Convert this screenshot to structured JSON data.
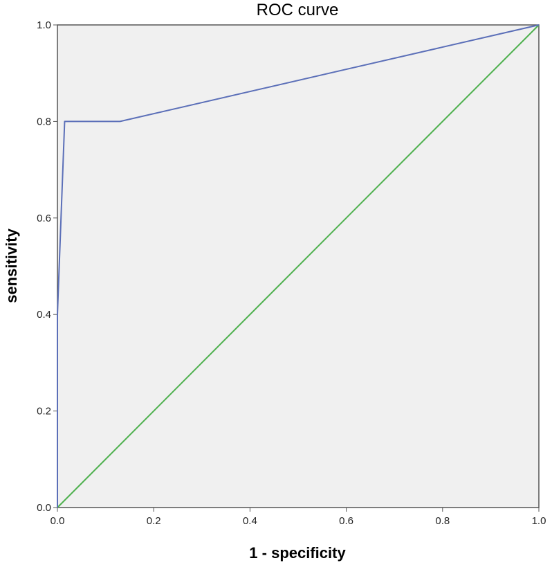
{
  "chart_data": {
    "type": "line",
    "title": "ROC  curve",
    "xlabel": "1 - specificity",
    "ylabel": "sensitivity",
    "xlim": [
      0,
      1
    ],
    "ylim": [
      0,
      1
    ],
    "x_ticks": [
      "0.0",
      "0.2",
      "0.4",
      "0.6",
      "0.8",
      "1.0"
    ],
    "y_ticks": [
      "0.0",
      "0.2",
      "0.4",
      "0.6",
      "0.8",
      "1.0"
    ],
    "grid": false,
    "legend": "none",
    "plot_background": "#f0f0f0",
    "series": [
      {
        "role": "roc",
        "color": "#5b6fb8",
        "points": [
          {
            "x": 0.0,
            "y": 0.0
          },
          {
            "x": 0.0,
            "y": 0.4
          },
          {
            "x": 0.015,
            "y": 0.8
          },
          {
            "x": 0.13,
            "y": 0.8
          },
          {
            "x": 1.0,
            "y": 1.0
          }
        ]
      },
      {
        "role": "reference",
        "color": "#4db04d",
        "points": [
          {
            "x": 0.0,
            "y": 0.0
          },
          {
            "x": 1.0,
            "y": 1.0
          }
        ]
      }
    ]
  }
}
